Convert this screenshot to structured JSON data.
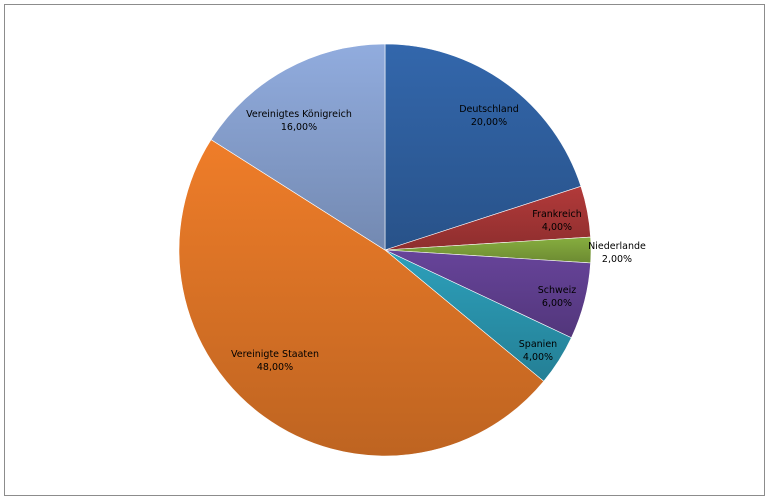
{
  "chart_data": {
    "type": "pie",
    "title": "",
    "slices": [
      {
        "label": "Deutschland",
        "value": 20,
        "value_label": "20,00%",
        "color": "#2f5f9f"
      },
      {
        "label": "Frankreich",
        "value": 4,
        "value_label": "4,00%",
        "color": "#a53636"
      },
      {
        "label": "Niederlande",
        "value": 2,
        "value_label": "2,00%",
        "color": "#7da13a"
      },
      {
        "label": "Schweiz",
        "value": 6,
        "value_label": "6,00%",
        "color": "#5f3f8f"
      },
      {
        "label": "Spanien",
        "value": 4,
        "value_label": "4,00%",
        "color": "#2a94ad"
      },
      {
        "label": "Vereinigte Staaten",
        "value": 48,
        "value_label": "48,00%",
        "color": "#dd7426"
      },
      {
        "label": "Vereinigtes Königreich",
        "value": 16,
        "value_label": "16,00%",
        "color": "#869fce"
      }
    ],
    "start_angle_deg": 0,
    "direction": "clockwise",
    "legend": "none"
  }
}
